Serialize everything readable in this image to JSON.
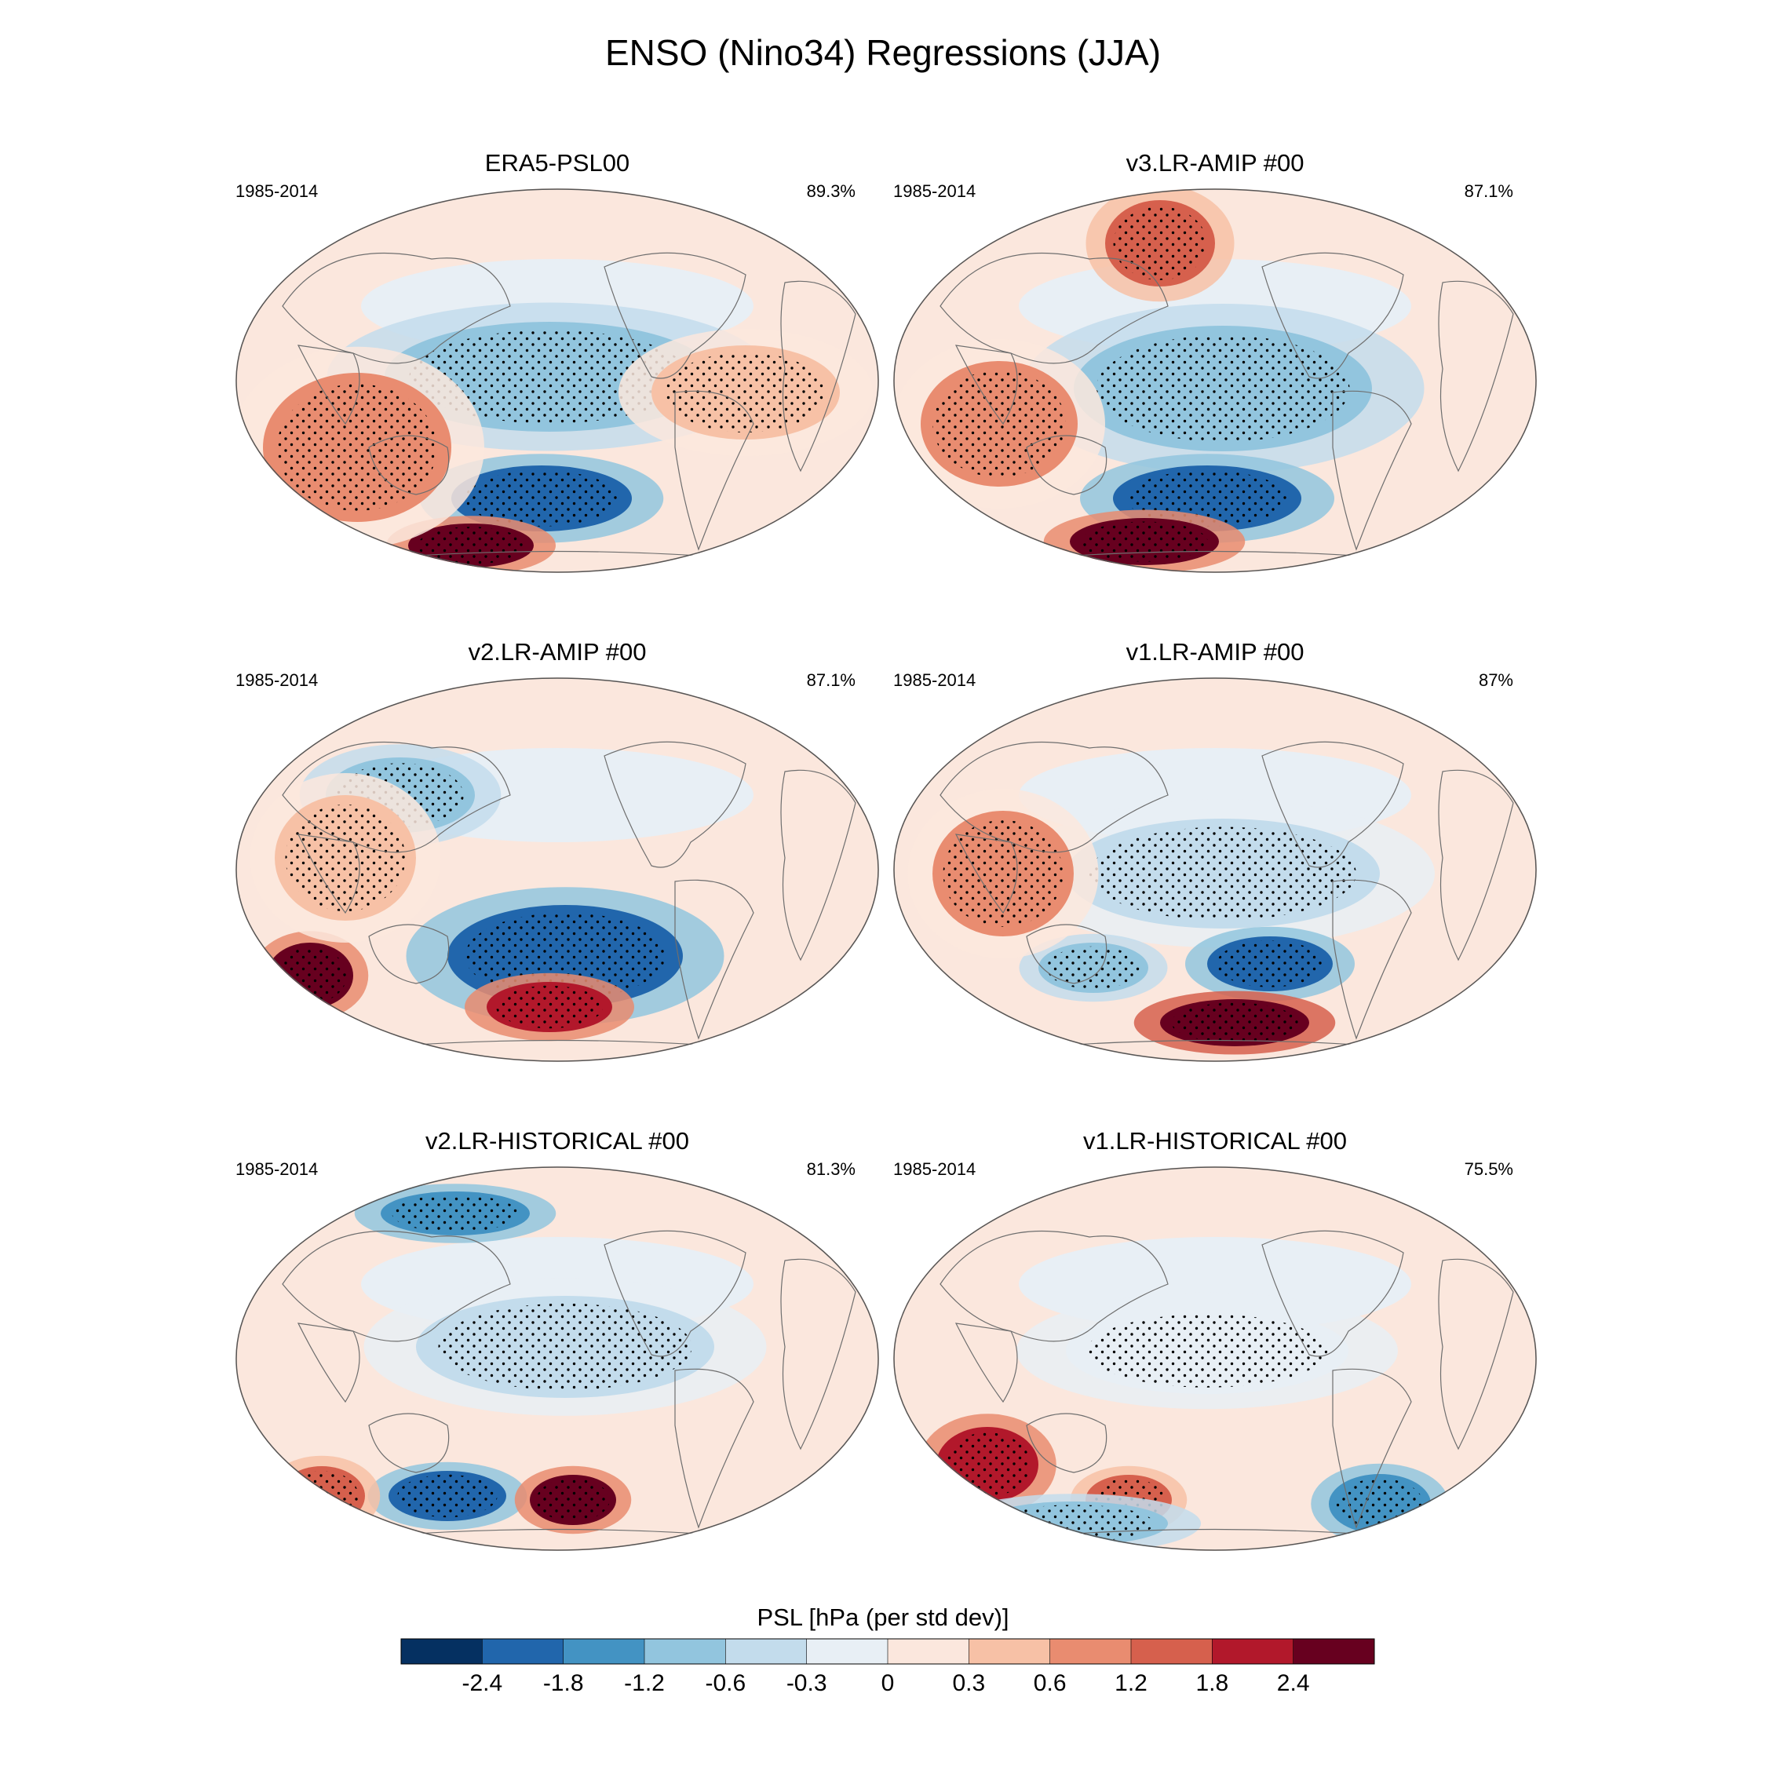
{
  "title": "ENSO (Nino34) Regressions (JJA)",
  "chart_data": {
    "type": "map",
    "projection": "Robinson (Pacific-centred)",
    "variable": "PSL",
    "panels": [
      {
        "title": "ERA5-PSL00",
        "period": "1985-2014",
        "pattern_correlation": "89.3%",
        "features": [
          {
            "region": "tropical eastern Pacific",
            "value": -1.2
          },
          {
            "region": "south-central Pacific (~40S)",
            "value": -2.1
          },
          {
            "region": "Amundsen/Bellingshausen Sea",
            "value": 2.4
          },
          {
            "region": "Indian Ocean / Maritime Continent",
            "value": 0.6
          },
          {
            "region": "Atlantic",
            "value": 0.3
          }
        ]
      },
      {
        "title": "v3.LR-AMIP  #00",
        "period": "1985-2014",
        "pattern_correlation": "87.1%",
        "features": [
          {
            "region": "tropical eastern Pacific",
            "value": -1.2
          },
          {
            "region": "south-central Pacific (~40S)",
            "value": -2.1
          },
          {
            "region": "Amundsen/Bellingshausen Sea",
            "value": 2.4
          },
          {
            "region": "Gulf of Alaska / Arctic",
            "value": 1.2
          },
          {
            "region": "Indian Ocean",
            "value": 0.6
          }
        ]
      },
      {
        "title": "v2.LR-AMIP  #00",
        "period": "1985-2014",
        "pattern_correlation": "87.1%",
        "features": [
          {
            "region": "North Pacific",
            "value": -1.2
          },
          {
            "region": "south-central Pacific (~40S)",
            "value": -2.1
          },
          {
            "region": "Amundsen/Bellingshausen Sea",
            "value": 1.8
          },
          {
            "region": "south of Australia",
            "value": 2.4
          },
          {
            "region": "Indian Ocean",
            "value": 0.3
          }
        ]
      },
      {
        "title": "v1.LR-AMIP  #00",
        "period": "1985-2014",
        "pattern_correlation": "87%",
        "features": [
          {
            "region": "tropical eastern Pacific",
            "value": -0.6
          },
          {
            "region": "south-central Pacific (~40S)",
            "value": -2.4
          },
          {
            "region": "Amundsen/Bellingshausen Sea",
            "value": 2.8
          },
          {
            "region": "south-west Pacific",
            "value": -1.2
          },
          {
            "region": "Indian Ocean",
            "value": 0.6
          }
        ]
      },
      {
        "title": "v2.LR-HISTORICAL  #00",
        "period": "1985-2014",
        "pattern_correlation": "81.3%",
        "features": [
          {
            "region": "tropical eastern Pacific",
            "value": -0.6
          },
          {
            "region": "south-west Pacific (~50S)",
            "value": -2.4
          },
          {
            "region": "south Pacific (~50S)",
            "value": 2.4
          },
          {
            "region": "Arctic (Siberia)",
            "value": -1.8
          },
          {
            "region": "south Indian Ocean",
            "value": 1.2
          }
        ]
      },
      {
        "title": "v1.LR-HISTORICAL  #00",
        "period": "1985-2014",
        "pattern_correlation": "75.5%",
        "features": [
          {
            "region": "tropical eastern Pacific",
            "value": -0.3
          },
          {
            "region": "south Indian Ocean",
            "value": 1.8
          },
          {
            "region": "south Pacific",
            "value": 1.2
          },
          {
            "region": "South Atlantic",
            "value": -1.8
          },
          {
            "region": "Southern Ocean",
            "value": -1.2
          }
        ]
      }
    ],
    "colorbar": {
      "title": "PSL [hPa (per std dev)]",
      "levels": [
        -2.4,
        -1.8,
        -1.2,
        -0.6,
        -0.3,
        0,
        0.3,
        0.6,
        1.2,
        1.8,
        2.4
      ],
      "tick_labels": [
        "-2.4",
        "-1.8",
        "-1.2",
        "-0.6",
        "-0.3",
        "0",
        "0.3",
        "0.6",
        "1.2",
        "1.8",
        "2.4"
      ],
      "colors": [
        "#053061",
        "#2166ac",
        "#4393c3",
        "#92c5de",
        "#c3dcec",
        "#e8eff5",
        "#fbe7dd",
        "#f7c1a6",
        "#e98c70",
        "#d6604d",
        "#b2182b",
        "#67001f"
      ]
    }
  }
}
